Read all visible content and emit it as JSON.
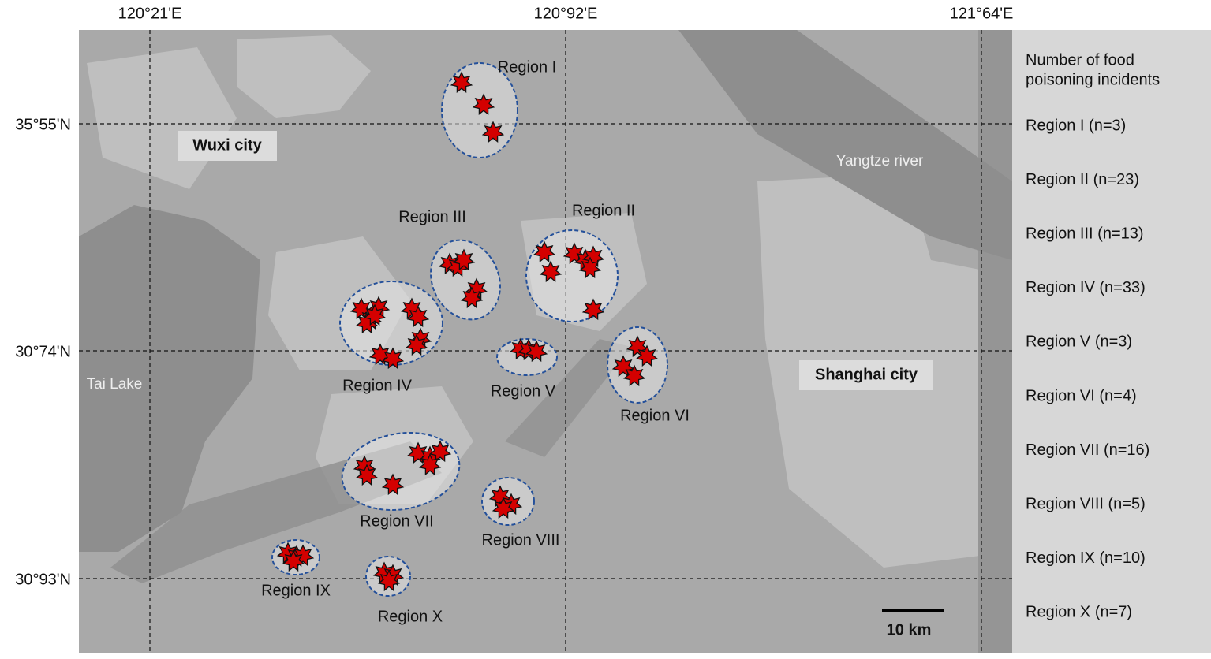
{
  "axes": {
    "x_labels": [
      "120°21'E",
      "120°92'E",
      "121°64'E"
    ],
    "y_labels": [
      "35°55'N",
      "30°74'N",
      "30°93'N"
    ]
  },
  "places": {
    "wuxi": "Wuxi city",
    "shanghai": "Shanghai city",
    "yangtze": "Yangtze river",
    "tai_lake": "Tai Lake"
  },
  "regions": [
    "Region I",
    "Region II",
    "Region III",
    "Region IV",
    "Region V",
    "Region VI",
    "Region VII",
    "Region VIII",
    "Region IX",
    "Region X"
  ],
  "legend": {
    "title_lines": [
      "Number of food",
      "poisoning incidents"
    ],
    "items": [
      "Region I (n=3)",
      "Region II (n=23)",
      "Region III (n=13)",
      "Region IV (n=33)",
      "Region V (n=3)",
      "Region VI (n=4)",
      "Region VII (n=16)",
      "Region VIII (n=5)",
      "Region IX (n=10)",
      "Region X (n=7)"
    ]
  },
  "scale_bar": "10 km"
}
